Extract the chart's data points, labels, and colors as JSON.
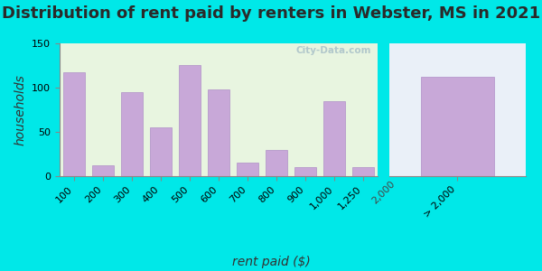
{
  "title": "Distribution of rent paid by renters in Webster, MS in 2021",
  "xlabel": "rent paid ($)",
  "ylabel": "households",
  "bar_color": "#c8a8d8",
  "bar_edge_color": "#b090c8",
  "bg_color": "#00e8e8",
  "plot_bg_left_top": "#f0fae8",
  "plot_bg_left_bottom": "#e0f0d8",
  "plot_bg_right": "#e8f0f8",
  "values_left": [
    117,
    12,
    95,
    55,
    125,
    98,
    15,
    30,
    10,
    85,
    10
  ],
  "labels_left": [
    "100",
    "200",
    "300",
    "400",
    "500",
    "600",
    "700",
    "800",
    "900",
    "1,000",
    "1,250"
  ],
  "values_right": [
    112
  ],
  "labels_right": [
    "> 2,000"
  ],
  "mid_label": "2,000",
  "ylim": [
    0,
    150
  ],
  "yticks": [
    0,
    50,
    100,
    150
  ],
  "title_fontsize": 13,
  "axis_label_fontsize": 10,
  "tick_fontsize": 8,
  "watermark": "City-Data.com"
}
